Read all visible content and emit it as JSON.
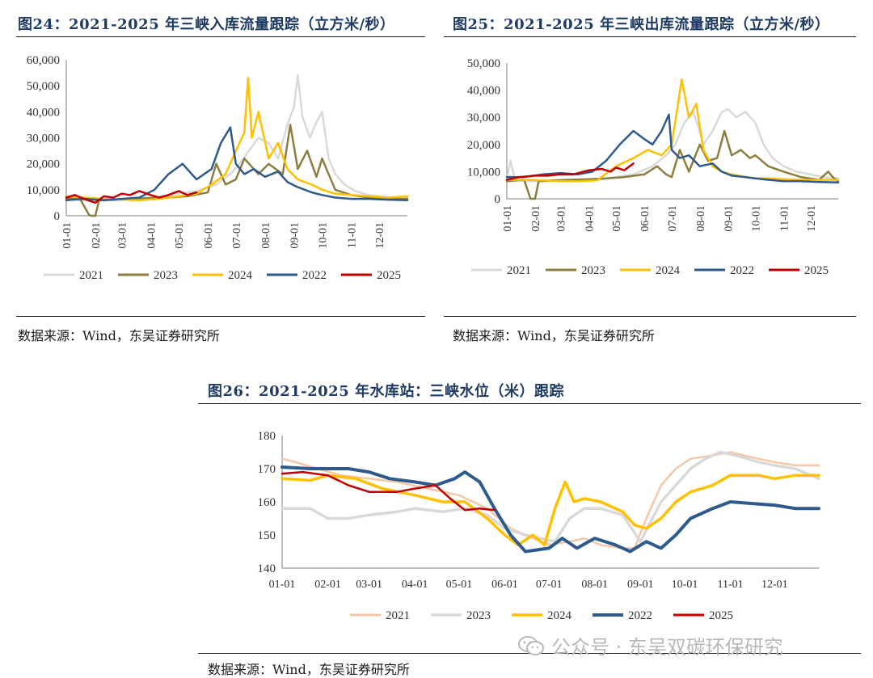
{
  "figures": [
    {
      "title": "图24：2021-2025 年三峡入库流量跟踪（立方米/秒）",
      "source": "数据来源：Wind，东吴证券研究所"
    },
    {
      "title": "图25：2021-2025 年三峡出库流量跟踪（立方米/秒）",
      "source": "数据来源：Wind，东吴证券研究所"
    },
    {
      "title": "图26：2021-2025 年水库站：三峡水位（米）跟踪",
      "source": "数据来源：Wind，东吴证券研究所"
    }
  ],
  "watermark": "公众号 · 东吴双碳环保研究",
  "chart_data": [
    {
      "type": "line",
      "title": "图24：2021-2025 年三峡入库流量跟踪（立方米/秒）",
      "x_axis": "day of year",
      "month_ticks": [
        "01-01",
        "02-01",
        "03-01",
        "04-01",
        "05-01",
        "06-01",
        "07-01",
        "08-01",
        "09-01",
        "10-01",
        "11-01",
        "12-01"
      ],
      "ylim": [
        0,
        60000
      ],
      "yticks": [
        0,
        10000,
        20000,
        30000,
        40000,
        50000,
        60000
      ],
      "ytick_labels": [
        "0",
        "10,000",
        "20,000",
        "30,000",
        "40,000",
        "50,000",
        "60,000"
      ],
      "legend_position": "bottom",
      "series": [
        {
          "name": "2021",
          "color": "#d9d9d9",
          "width": 2.5,
          "x": [
            "01-01",
            "01-20",
            "02-10",
            "03-01",
            "03-25",
            "04-15",
            "05-01",
            "05-20",
            "06-10",
            "06-25",
            "07-05",
            "07-15",
            "07-25",
            "08-05",
            "08-15",
            "08-25",
            "09-01",
            "09-05",
            "09-10",
            "09-18",
            "09-25",
            "10-01",
            "10-08",
            "10-15",
            "10-25",
            "11-05",
            "11-20",
            "12-01",
            "12-15",
            "12-31"
          ],
          "values": [
            6500,
            6000,
            5800,
            6200,
            6800,
            7500,
            8500,
            9500,
            12000,
            16000,
            20000,
            25000,
            30000,
            28000,
            22000,
            35000,
            42000,
            54000,
            38000,
            30000,
            36000,
            40000,
            22000,
            16000,
            12000,
            9500,
            8000,
            7500,
            7000,
            7000
          ]
        },
        {
          "name": "2023",
          "color": "#8c7e3e",
          "width": 2.5,
          "x": [
            "01-01",
            "01-15",
            "01-25",
            "01-27",
            "02-01",
            "02-05",
            "02-20",
            "03-10",
            "04-01",
            "04-20",
            "05-10",
            "06-01",
            "06-10",
            "06-20",
            "07-01",
            "07-10",
            "07-25",
            "08-05",
            "08-20",
            "08-28",
            "09-05",
            "09-15",
            "09-25",
            "10-01",
            "10-15",
            "11-01",
            "11-20",
            "12-10",
            "12-31"
          ],
          "values": [
            6500,
            7000,
            500,
            0,
            0,
            6000,
            6200,
            6500,
            6800,
            7000,
            7500,
            9000,
            20000,
            12000,
            14000,
            22000,
            16000,
            20000,
            16000,
            35000,
            18000,
            25000,
            15000,
            22000,
            10000,
            8000,
            7000,
            6500,
            6500
          ]
        },
        {
          "name": "2024",
          "color": "#ffc000",
          "width": 2.5,
          "x": [
            "01-01",
            "01-20",
            "02-10",
            "03-01",
            "03-20",
            "04-10",
            "05-01",
            "05-20",
            "06-05",
            "06-20",
            "07-01",
            "07-10",
            "07-14",
            "07-18",
            "07-25",
            "08-05",
            "08-15",
            "08-25",
            "09-05",
            "09-20",
            "10-01",
            "10-15",
            "11-01",
            "11-20",
            "12-10",
            "12-31"
          ],
          "values": [
            7500,
            7000,
            6500,
            6200,
            6000,
            6500,
            7500,
            8500,
            12000,
            16000,
            25000,
            32000,
            53000,
            30000,
            40000,
            22000,
            28000,
            18000,
            14000,
            12000,
            10000,
            8500,
            8000,
            7500,
            7000,
            7500
          ]
        },
        {
          "name": "2022",
          "color": "#2f5a8c",
          "width": 2.5,
          "x": [
            "01-01",
            "01-20",
            "02-10",
            "03-01",
            "03-20",
            "04-05",
            "04-20",
            "05-05",
            "05-20",
            "06-05",
            "06-15",
            "06-25",
            "07-01",
            "07-10",
            "07-20",
            "08-01",
            "08-15",
            "08-25",
            "09-05",
            "09-20",
            "10-01",
            "10-15",
            "11-01",
            "11-20",
            "12-10",
            "12-31"
          ],
          "values": [
            6000,
            6500,
            6000,
            6500,
            7000,
            10000,
            16000,
            20000,
            14000,
            18000,
            28000,
            34000,
            20000,
            16000,
            18000,
            15000,
            17000,
            13000,
            11000,
            9000,
            8000,
            7000,
            6500,
            6500,
            6200,
            6000
          ]
        },
        {
          "name": "2025",
          "color": "#c00000",
          "width": 2.5,
          "x": [
            "01-01",
            "01-10",
            "01-20",
            "02-01",
            "02-10",
            "02-20",
            "03-01",
            "03-10",
            "03-20",
            "04-01",
            "04-10",
            "04-20",
            "05-01",
            "05-10",
            "05-20"
          ],
          "values": [
            7000,
            8000,
            6500,
            5000,
            7500,
            7000,
            8500,
            8000,
            9500,
            8000,
            7000,
            8000,
            9500,
            8000,
            9000
          ]
        }
      ]
    },
    {
      "type": "line",
      "title": "图25：2021-2025 年三峡出库流量跟踪（立方米/秒）",
      "x_axis": "day of year",
      "month_ticks": [
        "01-01",
        "02-01",
        "03-01",
        "04-01",
        "05-01",
        "06-01",
        "07-01",
        "08-01",
        "09-01",
        "10-01",
        "11-01",
        "12-01"
      ],
      "ylim": [
        0,
        50000
      ],
      "yticks": [
        0,
        10000,
        20000,
        30000,
        40000,
        50000
      ],
      "ytick_labels": [
        "0",
        "10,000",
        "20,000",
        "30,000",
        "40,000",
        "50,000"
      ],
      "legend_position": "bottom",
      "series": [
        {
          "name": "2021",
          "color": "#d9d9d9",
          "width": 2.5,
          "x": [
            "01-01",
            "01-05",
            "01-10",
            "01-20",
            "02-10",
            "03-01",
            "03-25",
            "04-15",
            "05-01",
            "05-20",
            "06-10",
            "06-25",
            "07-05",
            "07-15",
            "07-25",
            "08-05",
            "08-15",
            "08-25",
            "09-01",
            "09-10",
            "09-20",
            "10-01",
            "10-10",
            "10-20",
            "11-01",
            "11-15",
            "12-01",
            "12-15",
            "12-31"
          ],
          "values": [
            7000,
            14000,
            7000,
            6500,
            6500,
            6800,
            7000,
            7200,
            8000,
            9000,
            12000,
            16000,
            20000,
            28000,
            32000,
            20000,
            25000,
            32000,
            33000,
            30000,
            32000,
            28000,
            20000,
            15000,
            12000,
            10000,
            9000,
            8000,
            7500
          ]
        },
        {
          "name": "2023",
          "color": "#8c7e3e",
          "width": 2.5,
          "x": [
            "01-01",
            "01-20",
            "01-27",
            "02-01",
            "02-05",
            "02-20",
            "03-10",
            "04-01",
            "04-20",
            "05-10",
            "06-01",
            "06-15",
            "06-25",
            "07-01",
            "07-10",
            "07-20",
            "08-01",
            "08-10",
            "08-20",
            "08-28",
            "09-05",
            "09-15",
            "09-25",
            "10-01",
            "10-15",
            "11-01",
            "11-20",
            "12-10",
            "12-20",
            "12-25",
            "12-31"
          ],
          "values": [
            6500,
            7000,
            0,
            0,
            6500,
            6800,
            7000,
            7200,
            7500,
            8000,
            9000,
            12000,
            9000,
            8000,
            18000,
            10000,
            20000,
            14000,
            15000,
            25000,
            16000,
            18000,
            15000,
            16000,
            12000,
            10000,
            8000,
            7000,
            10000,
            8000,
            6500
          ]
        },
        {
          "name": "2024",
          "color": "#ffc000",
          "width": 2.5,
          "x": [
            "01-01",
            "01-20",
            "02-10",
            "03-01",
            "03-20",
            "04-10",
            "05-01",
            "05-20",
            "06-05",
            "06-20",
            "07-01",
            "07-08",
            "07-12",
            "07-20",
            "07-28",
            "08-05",
            "08-15",
            "08-25",
            "09-05",
            "09-20",
            "10-01",
            "10-15",
            "11-01",
            "11-20",
            "12-10",
            "12-31"
          ],
          "values": [
            7000,
            7000,
            6800,
            6500,
            6500,
            6800,
            12000,
            15000,
            18000,
            16000,
            20000,
            35000,
            44000,
            30000,
            35000,
            18000,
            12000,
            10000,
            9000,
            8000,
            7500,
            7500,
            7200,
            7000,
            7000,
            7000
          ]
        },
        {
          "name": "2022",
          "color": "#2f5a8c",
          "width": 2.5,
          "x": [
            "01-01",
            "01-20",
            "02-10",
            "03-01",
            "03-20",
            "04-05",
            "04-20",
            "05-05",
            "05-20",
            "06-01",
            "06-10",
            "06-20",
            "06-28",
            "07-01",
            "07-10",
            "07-20",
            "08-01",
            "08-15",
            "08-25",
            "09-05",
            "09-20",
            "10-01",
            "10-15",
            "11-01",
            "11-20",
            "12-10",
            "12-31"
          ],
          "values": [
            8000,
            8000,
            9000,
            9500,
            9000,
            10000,
            14000,
            20000,
            25000,
            22000,
            20000,
            25000,
            31000,
            18000,
            15000,
            16000,
            12000,
            13000,
            10000,
            8500,
            8000,
            7500,
            7000,
            6500,
            6500,
            6200,
            6000
          ]
        },
        {
          "name": "2025",
          "color": "#c00000",
          "width": 2.5,
          "x": [
            "01-01",
            "01-15",
            "02-01",
            "02-15",
            "03-01",
            "03-15",
            "04-01",
            "04-15",
            "04-25",
            "05-01",
            "05-10",
            "05-20"
          ],
          "values": [
            7000,
            8000,
            8500,
            8500,
            9000,
            9000,
            10500,
            11000,
            10000,
            11500,
            10500,
            13000
          ]
        }
      ]
    },
    {
      "type": "line",
      "title": "图26：2021-2025 年水库站：三峡水位（米）跟踪",
      "x_axis": "day of year",
      "month_ticks": [
        "01-01",
        "02-01",
        "03-01",
        "04-01",
        "05-01",
        "06-01",
        "07-01",
        "08-01",
        "09-01",
        "10-01",
        "11-01",
        "12-01"
      ],
      "ylim": [
        140,
        180
      ],
      "yticks": [
        140,
        150,
        160,
        170,
        180
      ],
      "ytick_labels": [
        "140",
        "150",
        "160",
        "170",
        "180"
      ],
      "legend_position": "bottom",
      "series": [
        {
          "name": "2021",
          "color": "#f4c7a8",
          "width": 2.5,
          "x": [
            "01-01",
            "01-10",
            "01-25",
            "02-10",
            "03-01",
            "03-20",
            "04-10",
            "05-01",
            "05-20",
            "06-05",
            "06-15",
            "07-01",
            "07-15",
            "07-25",
            "08-05",
            "08-20",
            "08-28",
            "09-05",
            "09-15",
            "09-25",
            "10-05",
            "10-20",
            "11-01",
            "11-10",
            "11-20",
            "12-01",
            "12-15",
            "12-31"
          ],
          "values": [
            173,
            172,
            170,
            168,
            167,
            166,
            164,
            162,
            158,
            152,
            150,
            147,
            148,
            149,
            147,
            146,
            146,
            155,
            165,
            170,
            173,
            174,
            175,
            174,
            173,
            172,
            171,
            171
          ]
        },
        {
          "name": "2023",
          "color": "#d9d9d9",
          "width": 3.5,
          "x": [
            "01-01",
            "01-20",
            "02-01",
            "02-15",
            "03-01",
            "03-20",
            "04-01",
            "04-20",
            "05-05",
            "05-20",
            "06-01",
            "06-15",
            "06-25",
            "07-05",
            "07-15",
            "07-25",
            "08-05",
            "08-20",
            "09-01",
            "09-15",
            "09-25",
            "10-05",
            "10-15",
            "10-25",
            "11-05",
            "11-20",
            "12-01",
            "12-15",
            "12-31"
          ],
          "values": [
            158,
            158,
            155,
            155,
            156,
            157,
            158,
            157,
            158,
            156,
            152,
            150,
            149,
            148,
            155,
            158,
            158,
            156,
            148,
            160,
            165,
            170,
            173,
            175,
            174,
            172,
            171,
            170,
            167
          ]
        },
        {
          "name": "2024",
          "color": "#ffc000",
          "width": 3.5,
          "x": [
            "01-01",
            "01-20",
            "02-01",
            "02-20",
            "03-10",
            "04-01",
            "04-20",
            "05-05",
            "05-20",
            "06-01",
            "06-10",
            "06-20",
            "06-28",
            "07-05",
            "07-12",
            "07-18",
            "07-25",
            "08-05",
            "08-20",
            "08-28",
            "09-05",
            "09-15",
            "09-25",
            "10-05",
            "10-20",
            "11-01",
            "11-20",
            "12-01",
            "12-15",
            "12-31"
          ],
          "values": [
            167,
            166.5,
            168,
            167,
            164,
            162,
            160,
            160,
            155,
            150,
            147,
            150,
            147,
            158,
            166,
            160,
            161,
            160,
            157,
            153,
            152,
            155,
            160,
            163,
            165,
            168,
            168,
            167,
            168,
            168
          ]
        },
        {
          "name": "2022",
          "color": "#2f5a8c",
          "width": 4,
          "x": [
            "01-01",
            "01-20",
            "02-01",
            "02-15",
            "03-01",
            "03-15",
            "04-01",
            "04-15",
            "04-28",
            "05-05",
            "05-15",
            "05-25",
            "06-05",
            "06-15",
            "07-01",
            "07-10",
            "07-20",
            "08-01",
            "08-15",
            "08-25",
            "09-05",
            "09-15",
            "09-25",
            "10-05",
            "10-20",
            "11-01",
            "11-15",
            "12-01",
            "12-15",
            "12-31"
          ],
          "values": [
            170.5,
            170,
            170,
            170,
            169,
            167,
            166,
            165,
            167,
            169,
            166,
            158,
            150,
            145,
            146,
            149,
            146,
            149,
            147,
            145,
            148,
            146,
            150,
            155,
            158,
            160,
            159.5,
            159,
            158,
            158
          ]
        },
        {
          "name": "2025",
          "color": "#c00000",
          "width": 2.5,
          "x": [
            "01-01",
            "01-15",
            "02-01",
            "02-15",
            "03-01",
            "03-20",
            "04-01",
            "04-15",
            "04-25",
            "05-05",
            "05-15",
            "05-25"
          ],
          "values": [
            168.5,
            169,
            168,
            165,
            163,
            163,
            164,
            165,
            161,
            157.5,
            158,
            157.5
          ]
        }
      ]
    }
  ]
}
